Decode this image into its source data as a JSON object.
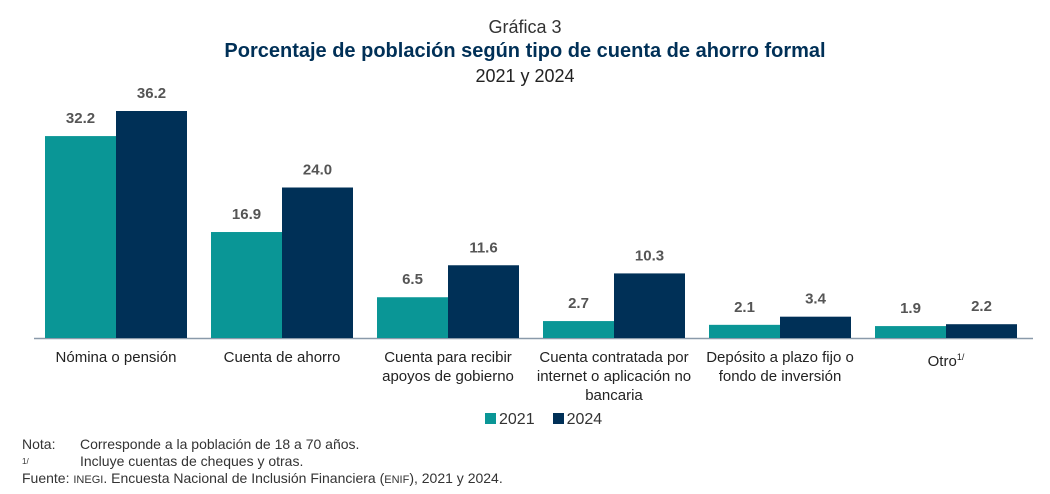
{
  "title": {
    "pre": "Gráfica 3",
    "main": "Porcentaje de población según tipo de cuenta de ahorro formal",
    "sub": "2021 y 2024"
  },
  "colors": {
    "2021": "#0a9696",
    "2024": "#003057"
  },
  "chart_data": {
    "type": "bar",
    "title": "Porcentaje de población según tipo de cuenta de ahorro formal",
    "categories": [
      "Nómina o pensión",
      "Cuenta de ahorro",
      "Cuenta para recibir apoyos de gobierno",
      "Cuenta contratada por internet o aplicación no bancaria",
      "Depósito a plazo fijo o fondo de inversión",
      "Otro"
    ],
    "category_sup": [
      "",
      "",
      "",
      "",
      "",
      "1/"
    ],
    "series": [
      {
        "name": "2021",
        "values": [
          32.2,
          16.9,
          6.5,
          2.7,
          2.1,
          1.9
        ]
      },
      {
        "name": "2024",
        "values": [
          36.2,
          24.0,
          11.6,
          10.3,
          3.4,
          2.2
        ]
      }
    ],
    "ylim": [
      0,
      38
    ],
    "grid": false,
    "legend": "bottom",
    "xlabel": "",
    "ylabel": ""
  },
  "notes": {
    "nota_key": "Nota:",
    "nota": "Corresponde a la población de 18 a 70 años.",
    "fn_key": "1/",
    "fn": "Incluye cuentas de cheques y otras.",
    "fuente_key": "Fuente:",
    "fuente_a": "INEGI",
    "fuente_b": ". Encuesta Nacional de Inclusión Financiera (",
    "fuente_c": "ENIF",
    "fuente_d": "), 2021 y 2024."
  }
}
